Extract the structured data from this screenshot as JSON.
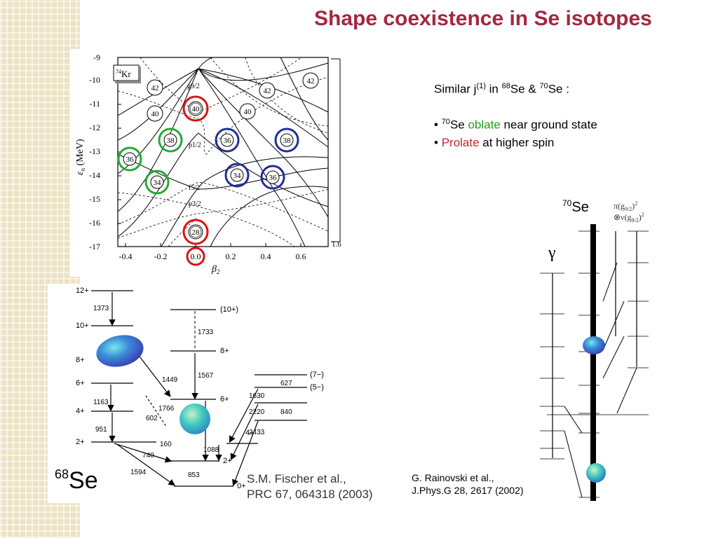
{
  "title": "Shape coexistence in Se isotopes",
  "bullets": {
    "intro_main": "Similar j",
    "intro_sup": "(1)",
    "intro_in": " in ",
    "sup68": "68",
    "intro_se_amp": "Se & ",
    "sup70": "70",
    "intro_tail": "Se :",
    "b1_pre": "• ",
    "b1_sup": "70",
    "b1_se": "Se ",
    "b1_oblate": "oblate",
    "b1_tail": " near ground state",
    "b2_pre": "• ",
    "b2_prolate": "Prolate",
    "b2_tail": " at higher spin"
  },
  "nilsson": {
    "nucleus_sup": "74",
    "nucleus": "Kr",
    "ylabel": "ε",
    "ylabel_sub": "n",
    "ylabel_unit": " (MeV)",
    "xlabel": "β",
    "xlabel_sub": "2",
    "x_ticks": [
      "-0.4",
      "-0.2",
      "0.0",
      "0.2",
      "0.4",
      "0.6"
    ],
    "y_ticks": [
      "-9",
      "-10",
      "-11",
      "-12",
      "-13",
      "-14",
      "-15",
      "-16",
      "-17"
    ],
    "orbitals": [
      "g9/2",
      "p1/2",
      "f5/2",
      "p3/2"
    ],
    "edge_label": "1.6",
    "gap_labels": [
      "42",
      "42",
      "42",
      "40",
      "40",
      "40",
      "38",
      "38",
      "36",
      "36",
      "36",
      "34",
      "34",
      "28"
    ],
    "circle_colors": {
      "red": "#dd1111",
      "green": "#22aa33",
      "blue": "#1f2f9a"
    }
  },
  "se68": {
    "isotope_sup": "68",
    "isotope": "Se",
    "ref_line1": "S.M. Fischer et al.,",
    "ref_line2": "PRC 67, 064318 (2003)",
    "levels": [
      "12+",
      "10+",
      "8+",
      "6+",
      "4+",
      "2+",
      "0+",
      "(10+)",
      "8+",
      "6+",
      "4+",
      "2+",
      "(7−)",
      "(5−)"
    ],
    "transitions": [
      "1373",
      "1163",
      "951",
      "740",
      "1594",
      "1449",
      "1567",
      "1733",
      "1766",
      "602",
      "160",
      "1088",
      "853",
      "1630",
      "2220",
      "840",
      "2433",
      "627"
    ]
  },
  "se70": {
    "isotope_sup": "70",
    "isotope": "Se",
    "gamma": "γ",
    "config1": "π(g",
    "config1_sub": "9/2",
    "config1_end": ")",
    "config1_sup": "2",
    "config2": "⊗ν(g",
    "config2_sub": "9/2",
    "config2_end": ")",
    "config2_sup": "2",
    "ref_line1": "G. Rainovski et al.,",
    "ref_line2": "J.Phys.G 28, 2617 (2002)"
  }
}
